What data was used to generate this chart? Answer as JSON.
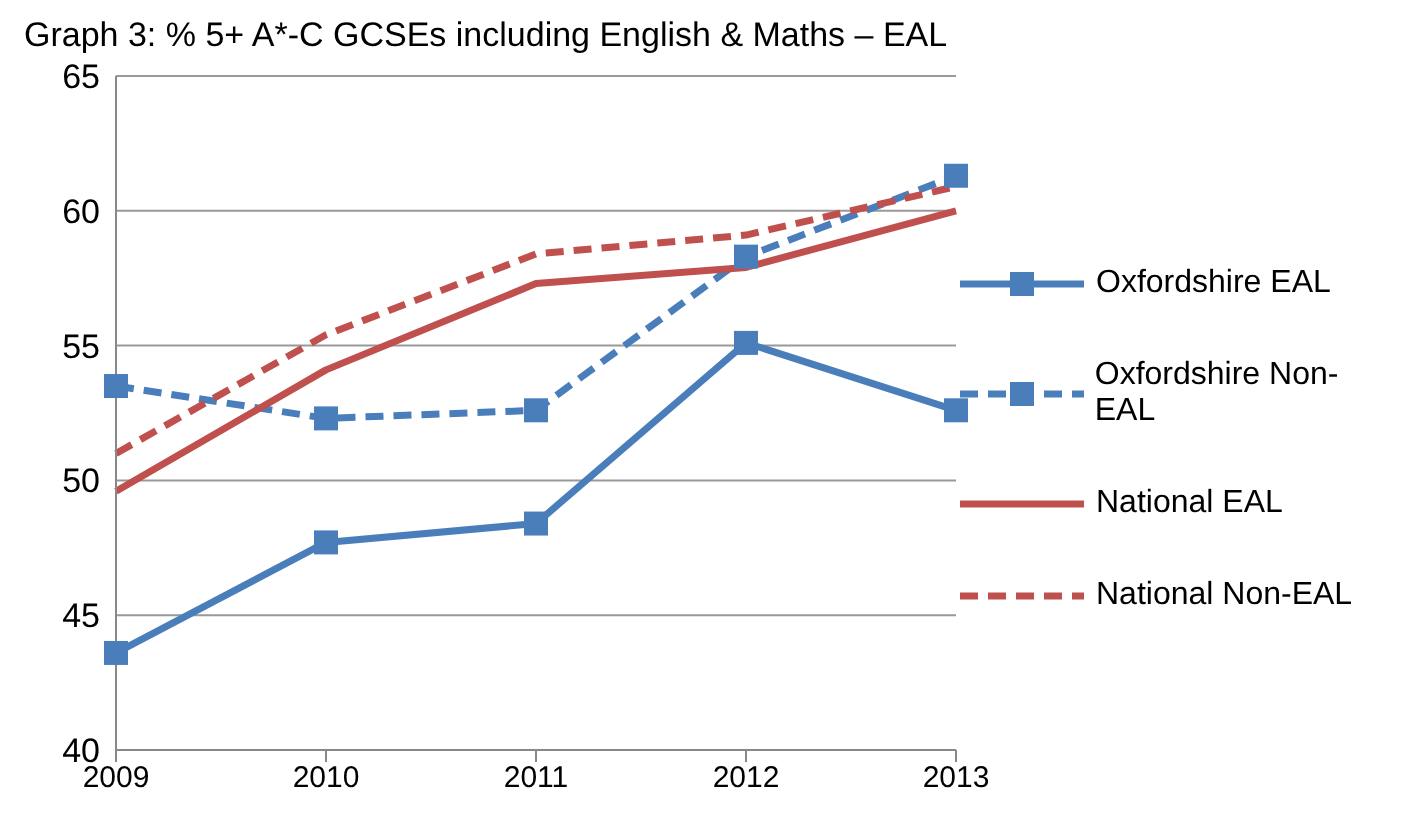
{
  "chart_data": {
    "type": "line",
    "title": "Graph 3: % 5+ A*-C GCSEs including English & Maths – EAL",
    "categories": [
      "2009",
      "2010",
      "2011",
      "2012",
      "2013"
    ],
    "series": [
      {
        "name": "Oxfordshire EAL",
        "color": "#4a7ebb",
        "marker": "square",
        "line_style": "solid",
        "values": [
          43.6,
          47.7,
          48.4,
          55.1,
          52.6
        ]
      },
      {
        "name": "Oxfordshire Non-EAL",
        "color": "#4a7ebb",
        "marker": "square",
        "line_style": "dashed",
        "values": [
          53.5,
          52.3,
          52.6,
          58.3,
          61.3
        ]
      },
      {
        "name": "National EAL",
        "color": "#c0504d",
        "marker": "none",
        "line_style": "solid",
        "values": [
          49.6,
          54.1,
          57.3,
          57.9,
          60.0
        ]
      },
      {
        "name": "National Non-EAL",
        "color": "#c0504d",
        "marker": "none",
        "line_style": "dashed",
        "values": [
          51.0,
          55.4,
          58.4,
          59.1,
          60.9
        ]
      }
    ],
    "ylim": [
      40,
      65
    ],
    "yticks": [
      40,
      45,
      50,
      55,
      60,
      65
    ],
    "grid": "y",
    "legend": "right"
  }
}
